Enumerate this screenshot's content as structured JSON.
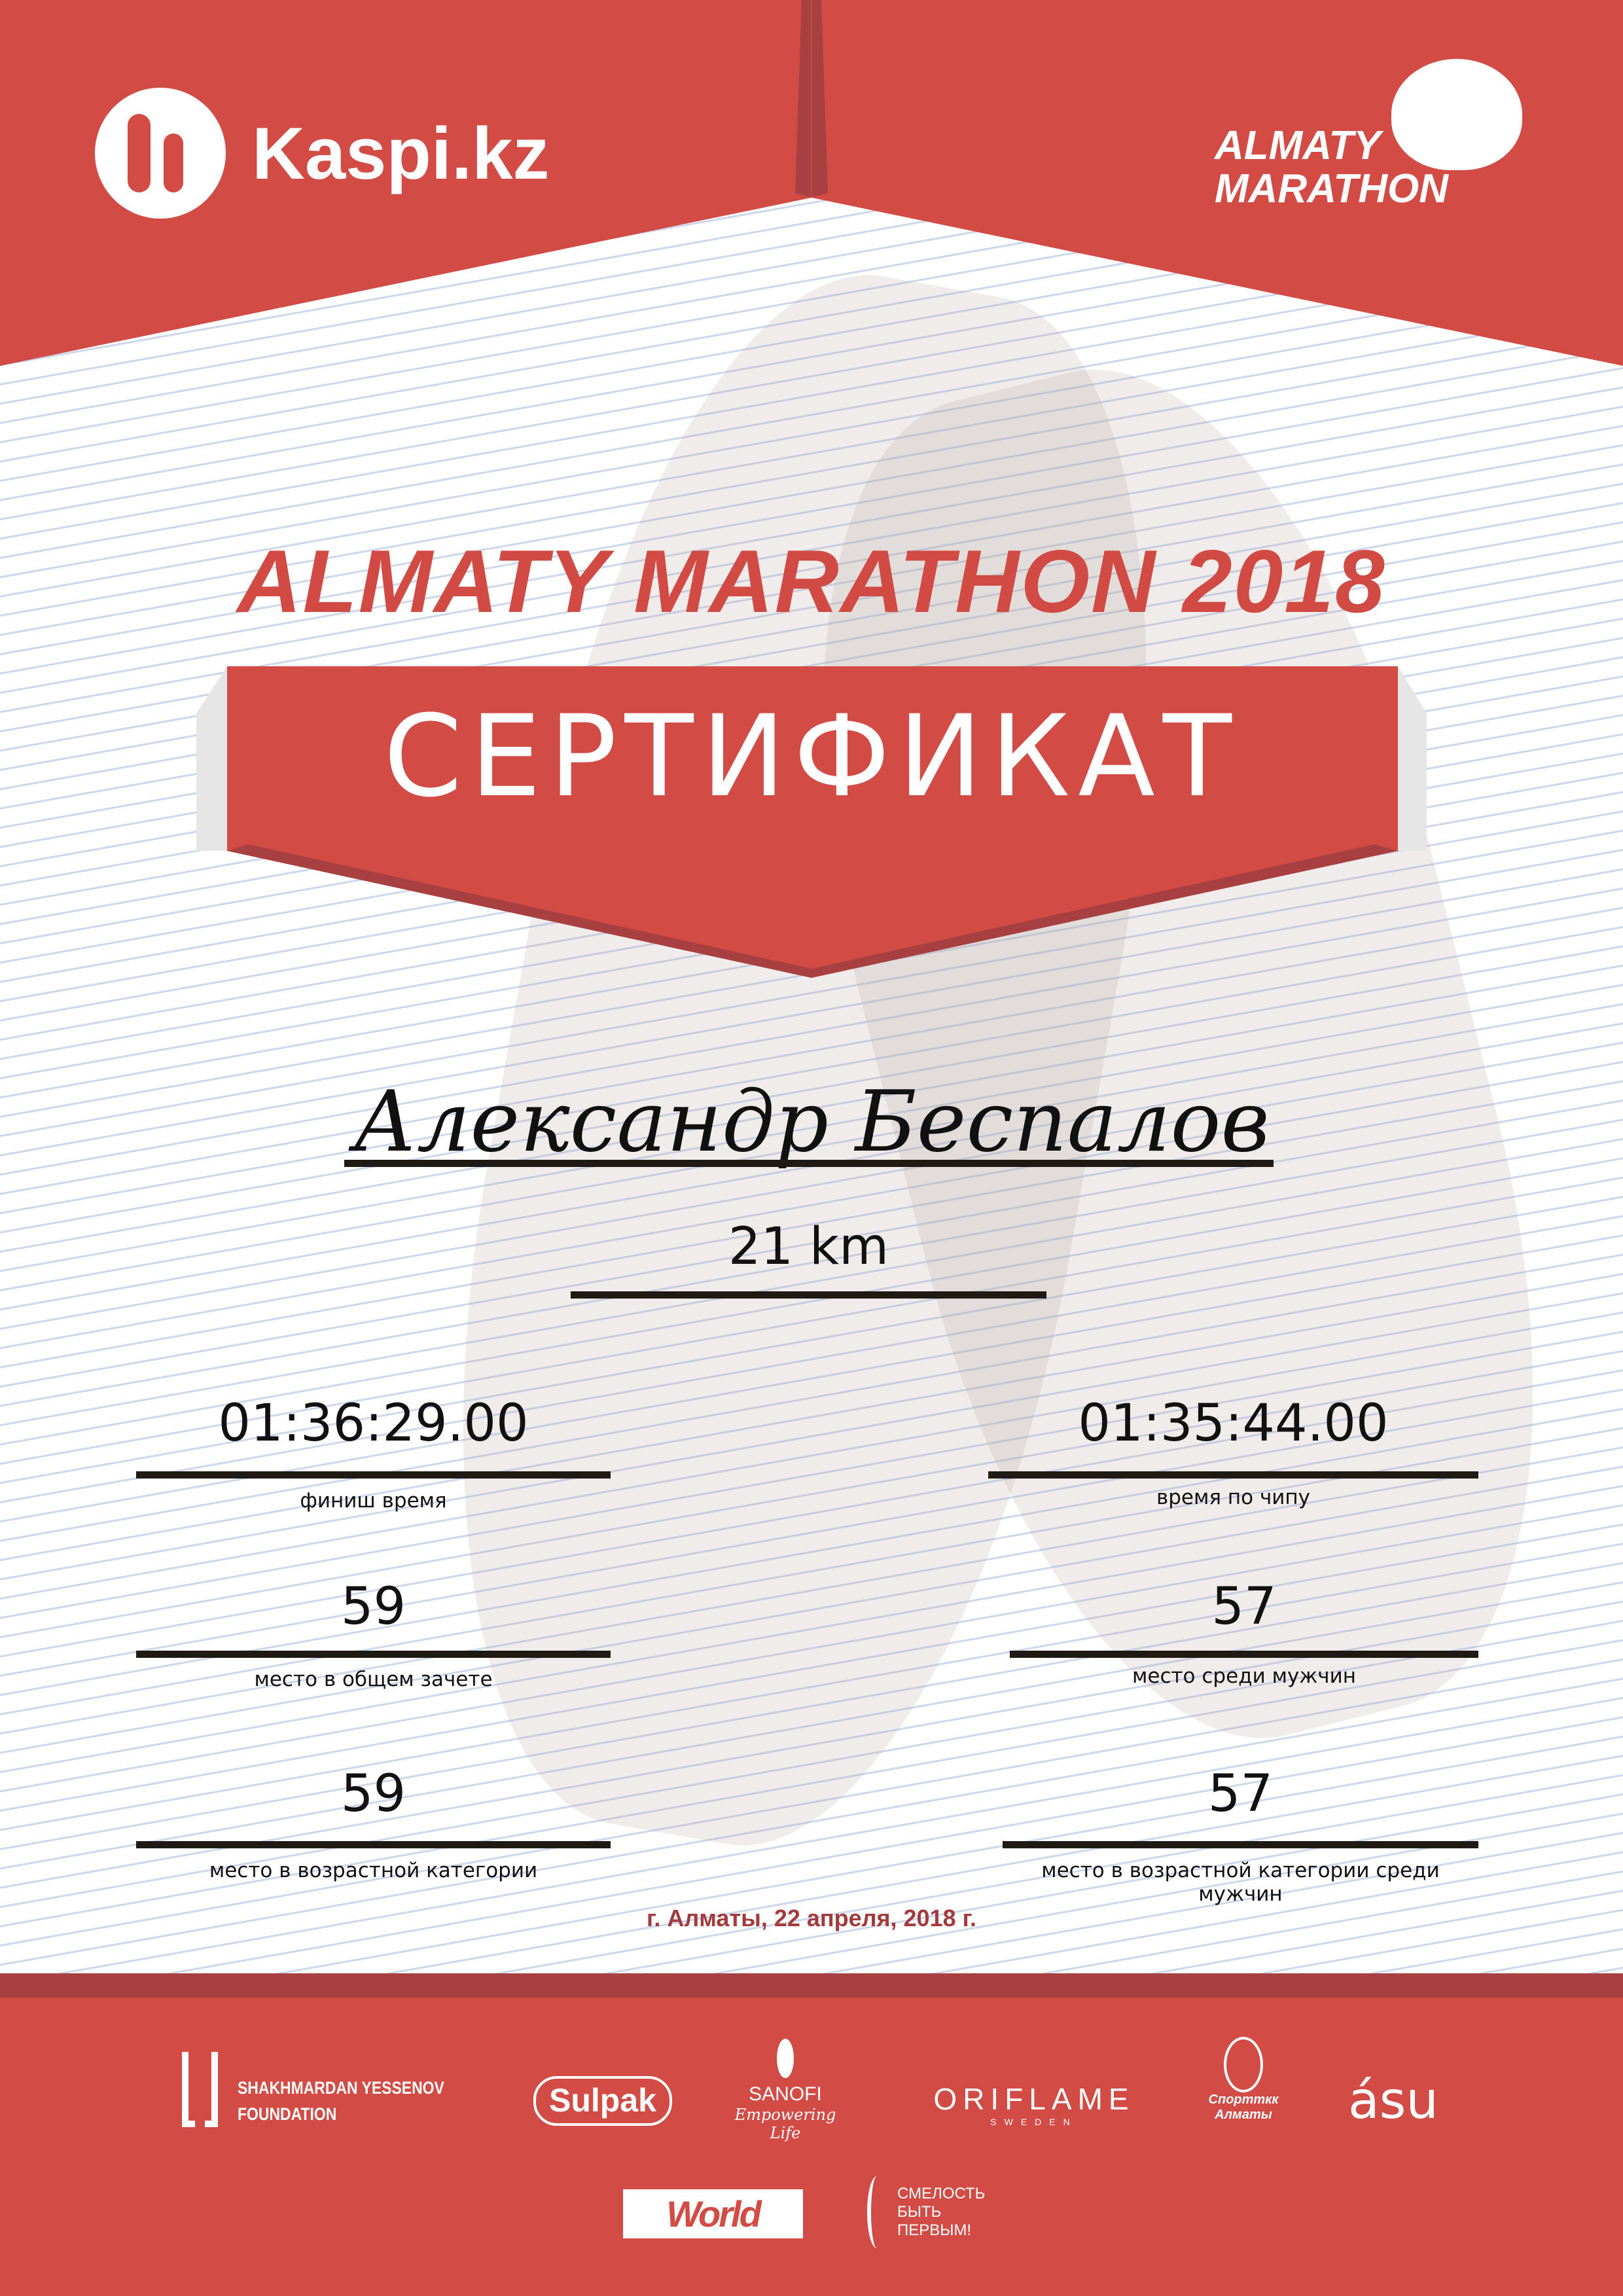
{
  "header": {
    "sponsor_logo": "Kaspi.kz",
    "event_logo_line1": "ALMATY",
    "event_logo_line2": "MARATHON"
  },
  "title": "ALMATY MARATHON 2018",
  "banner": "СЕРТИФИКАТ",
  "participant": {
    "name": "Александр Беспалов",
    "distance": "21 km"
  },
  "results": {
    "finish_time": {
      "value": "01:36:29.00",
      "label": "финиш время"
    },
    "chip_time": {
      "value": "01:35:44.00",
      "label": "время по чипу"
    },
    "overall_place": {
      "value": "59",
      "label": "место в общем зачете"
    },
    "gender_place": {
      "value": "57",
      "label": "место среди мужчин"
    },
    "age_place": {
      "value": "59",
      "label": "место в возрастной категории"
    },
    "age_gender_place": {
      "value": "57",
      "label": "место в возрастной категории среди мужчин"
    }
  },
  "date_place": "г. Алматы, 22 апреля, 2018 г.",
  "sponsors": {
    "yessenov": [
      "SHAKHMARDAN YESSENOV",
      "FOUNDATION"
    ],
    "sulpak": "Sulpak",
    "sanofi": [
      "SANOFI",
      "Empowering Life"
    ],
    "oriflame": [
      "ORIFLAME",
      "SWEDEN"
    ],
    "sport_almaty": [
      "Спортткк",
      "Алматы"
    ],
    "asu": "ásu",
    "worldclass": "World Class",
    "smelost": [
      "СМЕЛОСТЬ",
      "БЫТЬ",
      "ПЕРВЫМ!"
    ]
  },
  "colors": {
    "red": "#d24b45",
    "dark_red": "#a84042",
    "date": "#a33a3c"
  }
}
